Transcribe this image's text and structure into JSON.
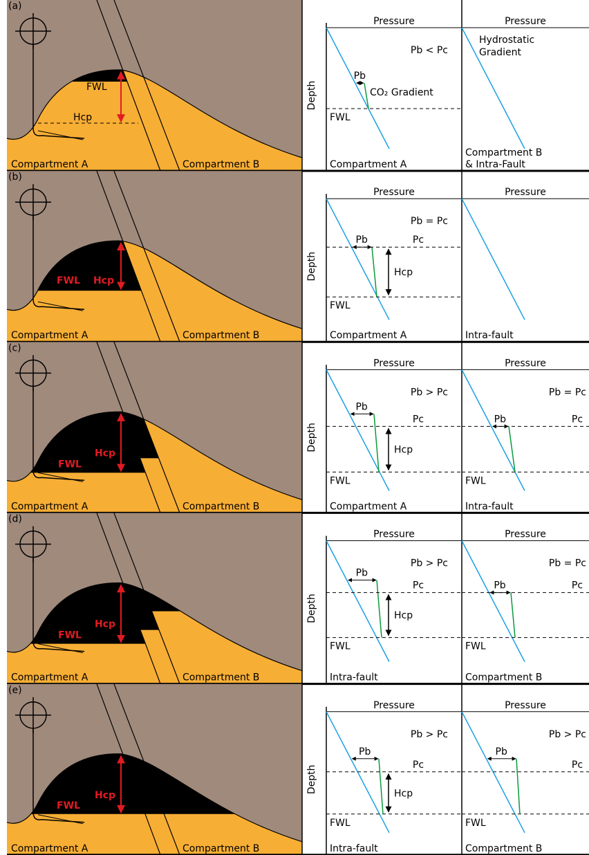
{
  "panels": [
    {
      "label": "(a)",
      "left": {
        "compartment_a": "Compartment A",
        "compartment_b": "Compartment B",
        "fwl": "FWL",
        "hcp": "Hcp"
      },
      "plots": [
        {
          "header": "Pressure",
          "axis_label": "Depth",
          "relation": "Pb < Pc",
          "pb": "Pb",
          "gradient": "CO₂ Gradient",
          "fwl": "FWL",
          "caption": [
            "Compartment A"
          ]
        },
        {
          "header": "Pressure",
          "note": [
            "Hydrostatic",
            "Gradient"
          ],
          "caption": [
            "Compartment B",
            "& Intra-Fault"
          ]
        }
      ]
    },
    {
      "label": "(b)",
      "left": {
        "compartment_a": "Compartment A",
        "compartment_b": "Compartment B",
        "fwl": "FWL",
        "hcp": "Hcp"
      },
      "plots": [
        {
          "header": "Pressure",
          "axis_label": "Depth",
          "relation": "Pb = Pc",
          "pb": "Pb",
          "pc": "Pc",
          "hcp": "Hcp",
          "fwl": "FWL",
          "caption": [
            "Compartment A"
          ]
        },
        {
          "header": "Pressure",
          "caption": [
            "Intra-fault"
          ]
        }
      ]
    },
    {
      "label": "(c)",
      "left": {
        "compartment_a": "Compartment A",
        "compartment_b": "Compartment B",
        "fwl": "FWL",
        "hcp": "Hcp"
      },
      "plots": [
        {
          "header": "Pressure",
          "axis_label": "Depth",
          "relation": "Pb > Pc",
          "pb": "Pb",
          "pc": "Pc",
          "hcp": "Hcp",
          "fwl": "FWL",
          "caption": [
            "Compartment A"
          ]
        },
        {
          "header": "Pressure",
          "relation": "Pb = Pc",
          "pb": "Pb",
          "pc": "Pc",
          "fwl": "FWL",
          "caption": [
            "Intra-fault"
          ]
        }
      ]
    },
    {
      "label": "(d)",
      "left": {
        "compartment_a": "Compartment A",
        "compartment_b": "Compartment B",
        "fwl": "FWL",
        "hcp": "Hcp"
      },
      "plots": [
        {
          "header": "Pressure",
          "axis_label": "Depth",
          "relation": "Pb > Pc",
          "pb": "Pb",
          "pc": "Pc",
          "hcp": "Hcp",
          "fwl": "FWL",
          "caption": [
            "Intra-fault"
          ]
        },
        {
          "header": "Pressure",
          "relation": "Pb = Pc",
          "pb": "Pb",
          "pc": "Pc",
          "fwl": "FWL",
          "caption": [
            "Compartment B"
          ]
        }
      ]
    },
    {
      "label": "(e)",
      "left": {
        "compartment_a": "Compartment A",
        "compartment_b": "Compartment B",
        "fwl": "FWL",
        "hcp": "Hcp"
      },
      "plots": [
        {
          "header": "Pressure",
          "axis_label": "Depth",
          "relation": "Pb > Pc",
          "pb": "Pb",
          "pc": "Pc",
          "hcp": "Hcp",
          "fwl": "FWL",
          "caption": [
            "Intra-fault"
          ]
        },
        {
          "header": "Pressure",
          "relation": "Pb > Pc",
          "pb": "Pb",
          "pc": "Pc",
          "fwl": "FWL",
          "caption": [
            "Compartment B"
          ]
        }
      ]
    }
  ]
}
